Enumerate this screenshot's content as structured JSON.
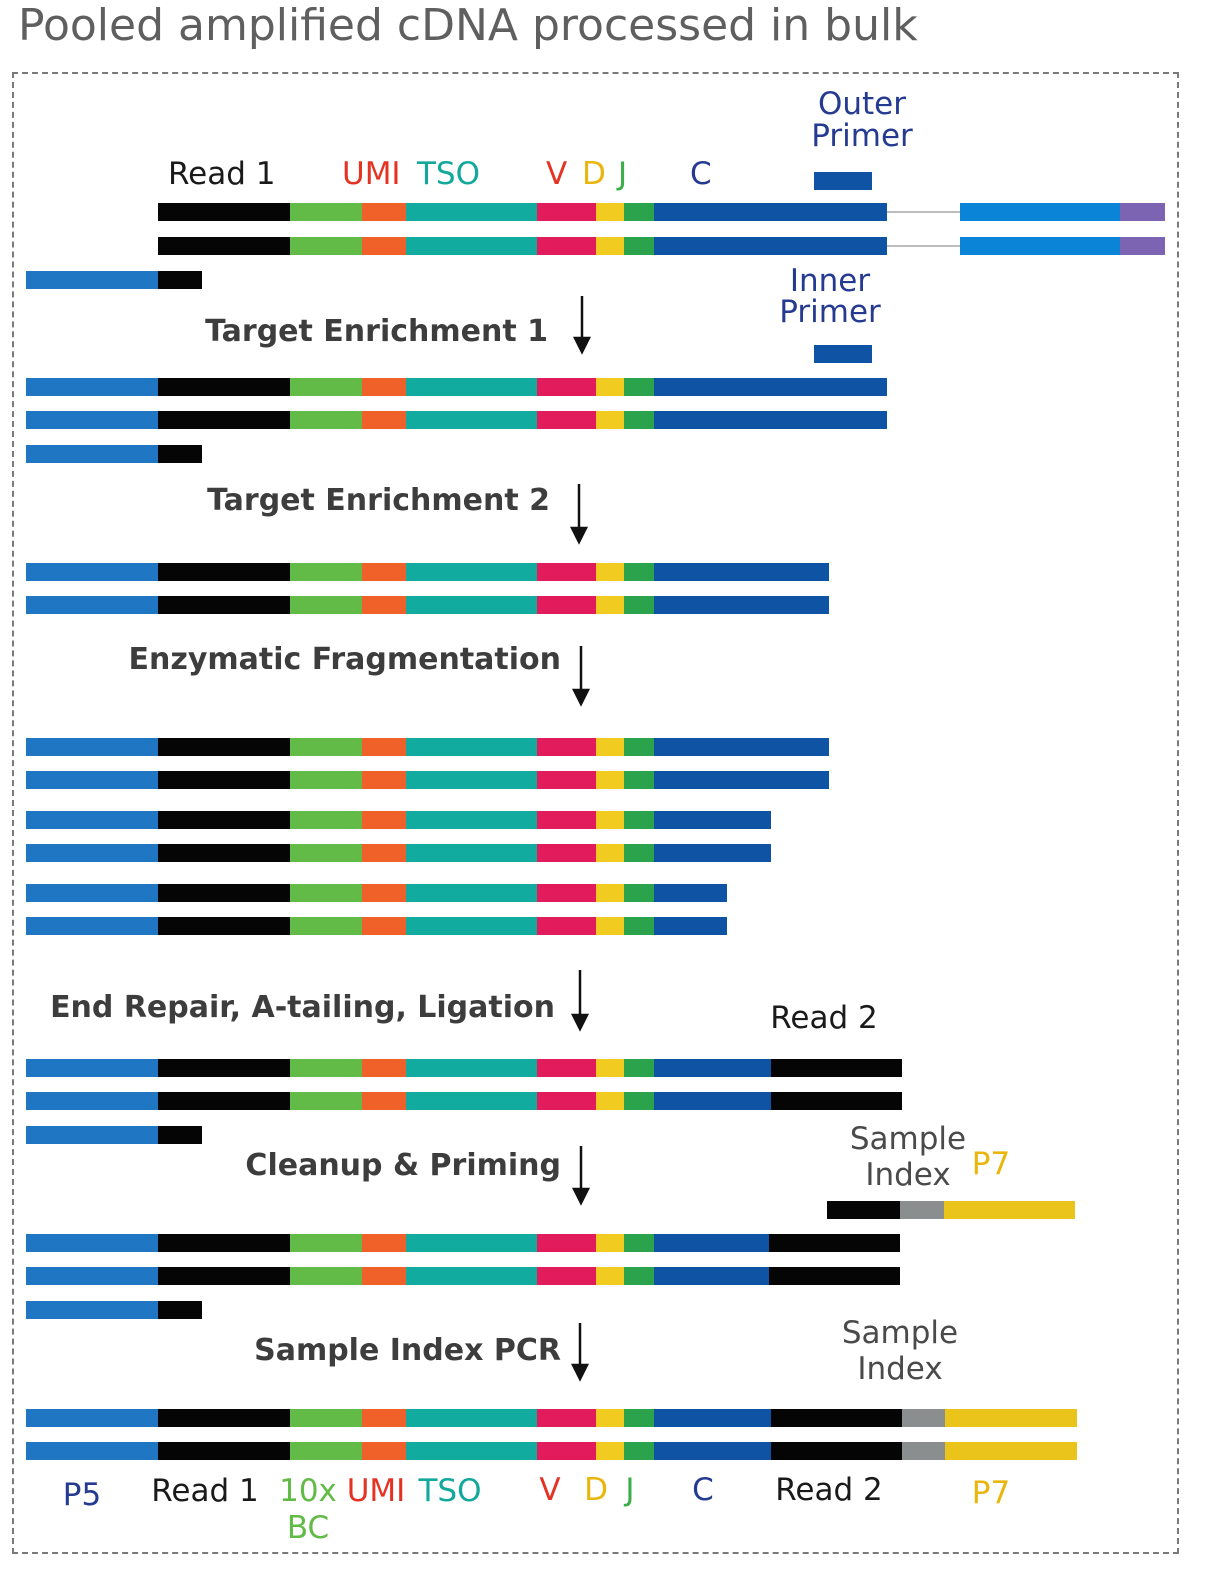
{
  "title": "Pooled amplified cDNA processed in bulk",
  "steps": {
    "te1": "Target Enrichment 1",
    "te2": "Target Enrichment 2",
    "frag": "Enzymatic Fragmentation",
    "erl": "End Repair, A-tailing, Ligation",
    "clean": "Cleanup & Priming",
    "sipcr": "Sample Index PCR"
  },
  "labels": {
    "outer_1": "Outer",
    "outer_2": "Primer",
    "inner_1": "Inner",
    "inner_2": "Primer",
    "read1": "Read 1",
    "umi": "UMI",
    "tso": "TSO",
    "v": "V",
    "d": "D",
    "j": "J",
    "c": "C",
    "read2": "Read 2",
    "sample_1": "Sample",
    "sample_2": "Index",
    "p7": "P7",
    "p5": "P5",
    "bc_1": "10x",
    "bc_2": "BC"
  },
  "colors": {
    "p5": "#1f76c2",
    "read1": "#050505",
    "bc": "#63bb47",
    "umi": "#f0612a",
    "tso": "#12aba0",
    "v": "#e21c5c",
    "d": "#f1cb1f",
    "j": "#2ba24c",
    "c": "#0f54a4",
    "read2": "#050505",
    "sample_index": "#8b8e8f",
    "p7": "#ebc41b",
    "tail_blue": "#0984d6",
    "tail_purple": "#7c64b3",
    "label_blue": "#253a91",
    "label_red": "#e53323",
    "label_teal": "#12a89c",
    "label_yellow": "#e9b60e",
    "label_green": "#3cae49",
    "label_black": "#1a1a1a",
    "label_gray": "#4a4a4a"
  }
}
